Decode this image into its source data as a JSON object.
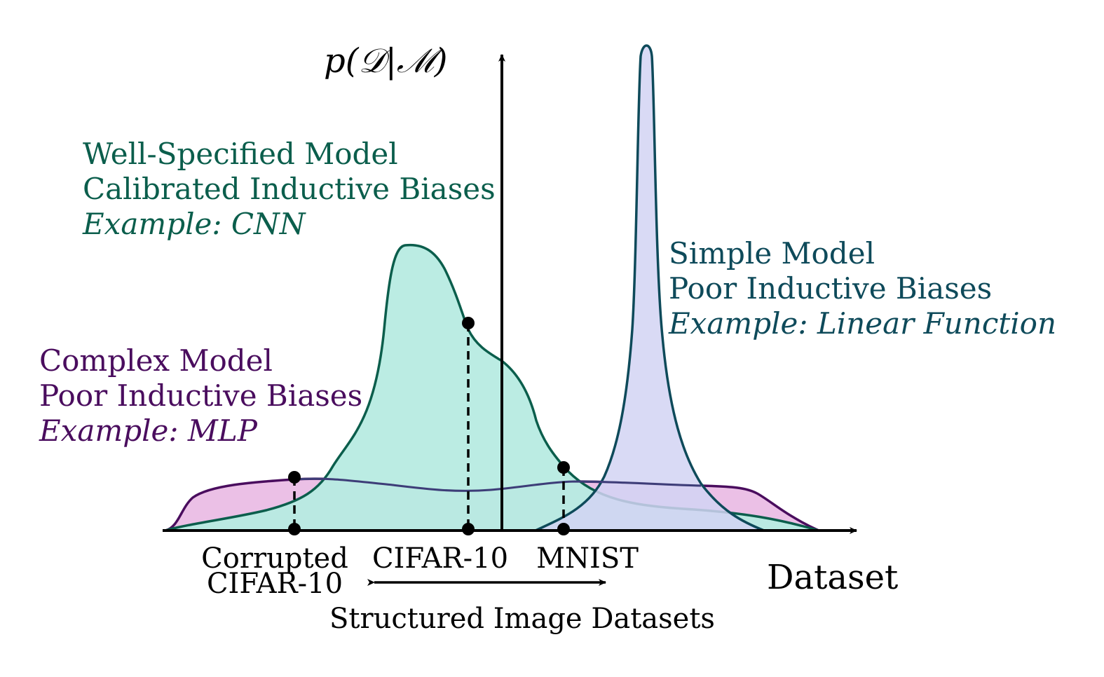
{
  "axes": {
    "y_label": "p(𝒟|ℳ)",
    "x_label": "Dataset"
  },
  "models": {
    "well_specified": {
      "line1": "Well-Specified Model",
      "line2": "Calibrated Inductive Biases",
      "line3": "Example: CNN",
      "color": "#0b5e4c",
      "fill": "#b7ebe1"
    },
    "complex": {
      "line1": "Complex Model",
      "line2": "Poor Inductive Biases",
      "line3": "Example: MLP",
      "color": "#4a0d5e",
      "fill": "#e9b9e3"
    },
    "simple": {
      "line1": "Simple Model",
      "line2": "Poor Inductive Biases",
      "line3": "Example: Linear Function",
      "color": "#0e4a5a",
      "fill": "#d2d3f3"
    }
  },
  "datasets": {
    "corrupted_line1": "Corrupted",
    "corrupted_line2": "CIFAR-10",
    "cifar": "CIFAR-10",
    "mnist": "MNIST",
    "range_label": "Structured Image Datasets"
  }
}
